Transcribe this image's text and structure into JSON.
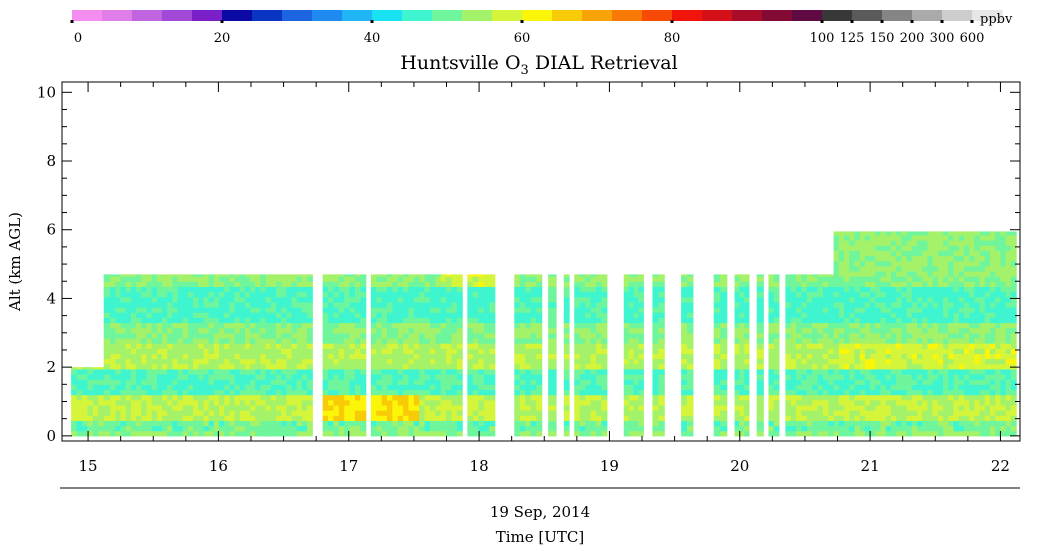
{
  "colorbar": {
    "unit": "ppbv",
    "colors": [
      "#f58cf0",
      "#e07ee9",
      "#c164e0",
      "#a148d6",
      "#7b1fc9",
      "#0b0aa5",
      "#0a35c2",
      "#1d64e0",
      "#1f8bf0",
      "#20b6f5",
      "#19e3f2",
      "#3ef5d0",
      "#6ff59c",
      "#a4f269",
      "#d4f53a",
      "#fbf50a",
      "#f8cb08",
      "#f8a307",
      "#f87905",
      "#f74a06",
      "#f0140b",
      "#d41018",
      "#a80c28",
      "#840a36",
      "#600a44",
      "#383838",
      "#5a5a5a",
      "#858585",
      "#aaaaaa",
      "#cdcdcd",
      "#e6e6e6"
    ],
    "tick_labels": [
      "0",
      "20",
      "40",
      "60",
      "80",
      "100",
      "125",
      "150",
      "200",
      "300",
      "600"
    ]
  },
  "chart_data": {
    "type": "heatmap",
    "title": "Huntsville O",
    "title_subscript": "3",
    "title_suffix": " DIAL Retrieval",
    "ylabel": "Alt (km AGL)",
    "xlabel_date": "19 Sep, 2014",
    "xlabel": "Time [UTC]",
    "xlim": [
      14.8,
      22.15
    ],
    "ylim": [
      -0.15,
      10.3
    ],
    "x_ticks": [
      15,
      16,
      17,
      18,
      19,
      20,
      21,
      22
    ],
    "x_tick_labels": [
      "15",
      "16",
      "17",
      "18",
      "19",
      "20",
      "21",
      "22"
    ],
    "y_ticks": [
      0,
      2,
      4,
      6,
      8,
      10
    ],
    "y_tick_labels": [
      "0",
      "2",
      "4",
      "6",
      "8",
      "10"
    ],
    "value_unit": "ppbv",
    "data_segments": [
      {
        "t_start": 14.87,
        "t_end": 15.12,
        "top_km": 2.0
      },
      {
        "t_start": 15.12,
        "t_end": 15.17,
        "top_km": 4.7
      },
      {
        "t_start": 15.17,
        "t_end": 16.72,
        "top_km": 4.7
      },
      {
        "t_start": 16.8,
        "t_end": 17.13,
        "top_km": 4.7
      },
      {
        "t_start": 17.17,
        "t_end": 17.87,
        "top_km": 4.7
      },
      {
        "t_start": 17.91,
        "t_end": 18.12,
        "top_km": 4.7
      },
      {
        "t_start": 18.27,
        "t_end": 18.48,
        "top_km": 4.7
      },
      {
        "t_start": 18.53,
        "t_end": 18.59,
        "top_km": 4.7
      },
      {
        "t_start": 18.65,
        "t_end": 18.69,
        "top_km": 4.7
      },
      {
        "t_start": 18.73,
        "t_end": 18.98,
        "top_km": 4.7
      },
      {
        "t_start": 19.11,
        "t_end": 19.26,
        "top_km": 4.7
      },
      {
        "t_start": 19.33,
        "t_end": 19.42,
        "top_km": 4.7
      },
      {
        "t_start": 19.55,
        "t_end": 19.64,
        "top_km": 4.7
      },
      {
        "t_start": 19.8,
        "t_end": 19.9,
        "top_km": 4.7
      },
      {
        "t_start": 19.96,
        "t_end": 20.07,
        "top_km": 4.7
      },
      {
        "t_start": 20.13,
        "t_end": 20.18,
        "top_km": 4.7
      },
      {
        "t_start": 20.22,
        "t_end": 20.3,
        "top_km": 4.7
      },
      {
        "t_start": 20.35,
        "t_end": 20.72,
        "top_km": 4.7
      },
      {
        "t_start": 20.72,
        "t_end": 22.12,
        "top_km": 5.95
      }
    ],
    "altitude_layers_ppbv": [
      {
        "z0": 0.0,
        "z1": 0.15,
        "ppbv": 52
      },
      {
        "z0": 0.15,
        "z1": 0.5,
        "ppbv": 50
      },
      {
        "z0": 0.5,
        "z1": 1.2,
        "ppbv": 56
      },
      {
        "z0": 1.2,
        "z1": 1.9,
        "ppbv": 48
      },
      {
        "z0": 1.9,
        "z1": 2.7,
        "ppbv": 55
      },
      {
        "z0": 2.7,
        "z1": 3.3,
        "ppbv": 52
      },
      {
        "z0": 3.3,
        "z1": 4.3,
        "ppbv": 47
      },
      {
        "z0": 4.3,
        "z1": 4.7,
        "ppbv": 52
      },
      {
        "z0": 4.7,
        "z1": 5.95,
        "ppbv": 53
      }
    ]
  }
}
